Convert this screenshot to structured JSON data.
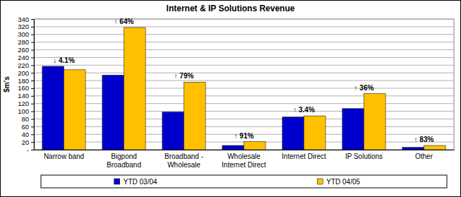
{
  "chart_data": {
    "type": "bar",
    "title": "Internet & IP Solutions Revenue",
    "y_label": "$m's",
    "categories": [
      "Narrow band",
      "Bigpond\nBroadband",
      "Broadband -\nWholesale",
      "Wholesale\nInternet Direct",
      "Internet Direct",
      "IP Solutions",
      "Other"
    ],
    "series": [
      {
        "name": "YTD 03/04",
        "color": "#0000cc",
        "values": [
          217,
          194,
          98,
          11,
          85,
          107,
          6
        ]
      },
      {
        "name": "YTD 04/05",
        "color": "#ffc000",
        "values": [
          208,
          318,
          176,
          21,
          88,
          146,
          11
        ]
      }
    ],
    "annotations": [
      "↓ 4.1%",
      "↑ 64%",
      "↑ 79%",
      "↑ 91%",
      "↑ 3.4%",
      "↑ 36%",
      "↑ 83%"
    ],
    "ylim": [
      0,
      340
    ],
    "yticks": [
      {
        "value": 0,
        "label": "-"
      },
      20,
      40,
      60,
      80,
      100,
      120,
      140,
      160,
      180,
      200,
      220,
      240,
      260,
      280,
      300,
      320,
      340
    ],
    "grid": true,
    "legend": "bottom"
  }
}
